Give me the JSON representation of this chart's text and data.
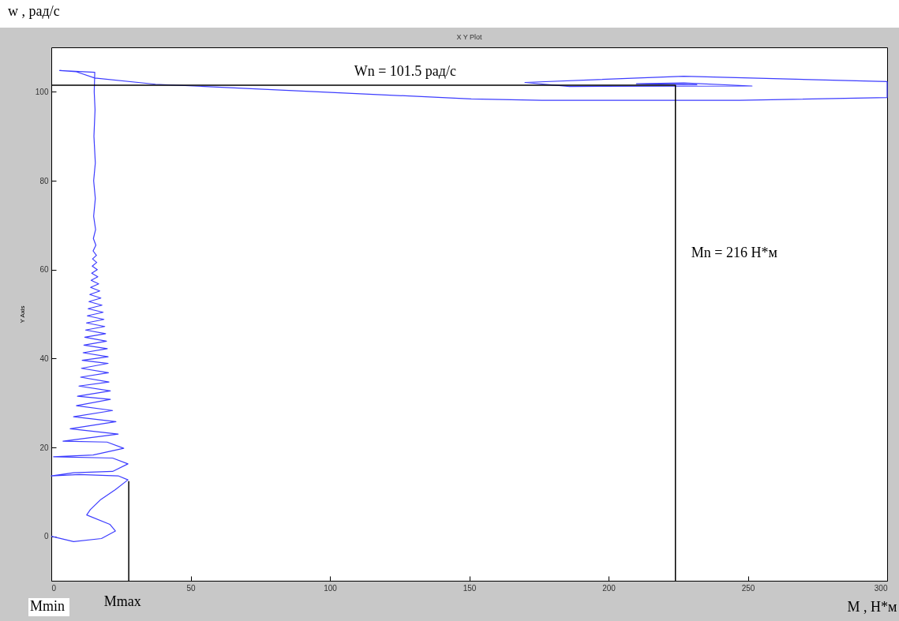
{
  "chart_data": {
    "type": "line",
    "title": "X Y Plot",
    "xlabel": "M , H*м",
    "ylabel": "Y Axis",
    "annotations": [
      "w , рад/с",
      {
        "text": "Wn = 101.5 рад/с",
        "x": 127,
        "y": 101.5
      },
      {
        "text": "Mn = 216 H*м",
        "x": 224,
        "y": 63.7
      },
      "Mmin",
      {
        "text": "Mmax",
        "x": 27.8,
        "y": -10
      }
    ],
    "xlim": [
      0,
      300
    ],
    "xticks": [
      0,
      50,
      100,
      150,
      200,
      250,
      300
    ],
    "ylim": [
      -10,
      110
    ],
    "yticks": [
      0,
      20,
      40,
      60,
      80,
      100
    ],
    "marker": "none",
    "line_style": "solid",
    "series": [
      {
        "color": "#3d3dff",
        "x": [
          0,
          8,
          18,
          23,
          21,
          12.7,
          14,
          17.8,
          23,
          27.5,
          24,
          10,
          0,
          8,
          22,
          27.5,
          22,
          0.8,
          15,
          26,
          20,
          4.2,
          24,
          6.8,
          23.2,
          8,
          22,
          9,
          21.2,
          9.4,
          21.2,
          9.9,
          20.7,
          10.5,
          20.5,
          10.8,
          20.4,
          11.1,
          20.4,
          11.4,
          20.1,
          11.7,
          19.8,
          12,
          19.5,
          12.3,
          19.2,
          12.6,
          18.9,
          12.9,
          18.6,
          13.2,
          18.2,
          13.5,
          17.8,
          13.8,
          17.4,
          14.1,
          17,
          14.3,
          16.7,
          14.5,
          16.5,
          14.7,
          16.3,
          14.8,
          16.2,
          15,
          16,
          15.1,
          15.9,
          15.2,
          15.8,
          15.2,
          15.8,
          15.3,
          15.7,
          15.4,
          15.6,
          3,
          9,
          15.6,
          37.4,
          150.7,
          176,
          247,
          300,
          300,
          227,
          170,
          186,
          251.5,
          227,
          210,
          231.7,
          224
        ],
        "values": [
          0,
          -1.2,
          -0.5,
          1.2,
          2.7,
          4.8,
          6,
          8.3,
          10.5,
          12.7,
          13.6,
          13.9,
          13.6,
          14.3,
          14.6,
          16.3,
          17.6,
          17.9,
          18.3,
          19.8,
          21.2,
          21.4,
          23,
          24.2,
          25.8,
          26.9,
          28.3,
          29.4,
          30.8,
          31.5,
          32.7,
          33.8,
          34.7,
          35.8,
          36.8,
          37.8,
          38.9,
          39.6,
          40.4,
          41.3,
          42.2,
          43,
          43.9,
          44.8,
          45.6,
          46.4,
          47.2,
          48,
          48.8,
          49.6,
          50.4,
          51.2,
          52,
          52.8,
          53.6,
          54.4,
          55.2,
          56,
          56.8,
          57.6,
          58.4,
          59.2,
          60,
          60.8,
          61.6,
          62.4,
          63.2,
          64.2,
          65.5,
          67,
          69,
          72,
          76,
          80,
          84,
          90,
          96,
          100,
          104.4,
          104.8,
          104.5,
          103.1,
          101.7,
          98.4,
          98.1,
          98.1,
          98.7,
          102.3,
          103.5,
          102.1,
          101.2,
          101.3,
          102,
          101.8,
          101.6,
          101.6
        ]
      },
      {
        "color": "#000000",
        "x": [
          0,
          224,
          224
        ],
        "values": [
          101.5,
          101.5,
          -10
        ]
      },
      {
        "color": "#000000",
        "x": [
          27.8,
          27.8
        ],
        "values": [
          12.4,
          -10
        ]
      }
    ]
  }
}
